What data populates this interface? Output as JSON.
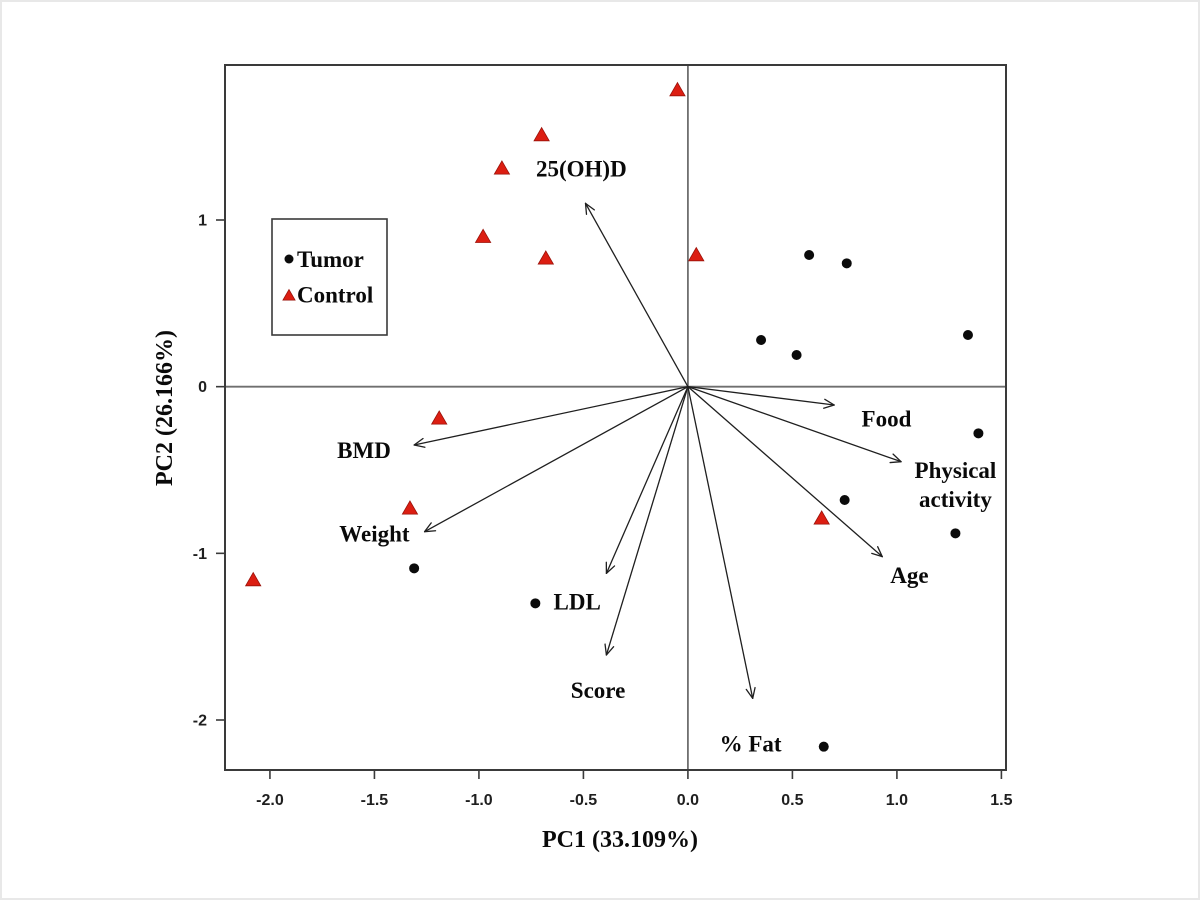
{
  "figure": {
    "background": "#ffffff",
    "frame_color": "#e8e8e8"
  },
  "chart_data": {
    "type": "scatter",
    "subtype": "pca_biplot",
    "title": "",
    "xlabel": "PC1 (33.109%)",
    "ylabel": "PC2 (26.166%)",
    "xlim": [
      -2.215,
      1.522
    ],
    "ylim": [
      -2.3,
      1.93
    ],
    "grid": false,
    "x_ticks": {
      "values": [
        -2.0,
        -1.5,
        -1.0,
        -0.5,
        0.0,
        0.5,
        1.0,
        1.5
      ],
      "labels": [
        "-2.0",
        "-1.5",
        "-1.0",
        "-0.5",
        "0.0",
        "0.5",
        "1.0",
        "1.5"
      ]
    },
    "y_ticks": {
      "values": [
        1,
        0,
        -1,
        -2
      ],
      "labels": [
        "1",
        "0",
        "-1",
        "-2"
      ]
    },
    "legend": {
      "position": "upper-left-inside",
      "items": [
        {
          "label": "Tumor",
          "marker": "dot",
          "color": "#0b0b0b"
        },
        {
          "label": "Control",
          "marker": "triangle",
          "color": "#dc1e12"
        }
      ]
    },
    "series": [
      {
        "name": "Tumor",
        "marker": "dot",
        "color": "#0b0b0b",
        "points": [
          [
            0.58,
            0.79
          ],
          [
            0.76,
            0.74
          ],
          [
            0.35,
            0.28
          ],
          [
            0.52,
            0.19
          ],
          [
            1.34,
            0.31
          ],
          [
            1.39,
            -0.28
          ],
          [
            0.75,
            -0.68
          ],
          [
            1.28,
            -0.88
          ],
          [
            -1.31,
            -1.09
          ],
          [
            -0.73,
            -1.3
          ],
          [
            0.65,
            -2.16
          ]
        ]
      },
      {
        "name": "Control",
        "marker": "triangle",
        "color": "#dc1e12",
        "points": [
          [
            -0.05,
            1.78
          ],
          [
            -0.7,
            1.51
          ],
          [
            -0.89,
            1.31
          ],
          [
            -0.98,
            0.9
          ],
          [
            -0.68,
            0.77
          ],
          [
            0.04,
            0.79
          ],
          [
            -1.19,
            -0.19
          ],
          [
            -1.33,
            -0.73
          ],
          [
            -2.08,
            -1.16
          ],
          [
            0.64,
            -0.79
          ]
        ]
      }
    ],
    "loadings": [
      {
        "name": "25(OH)D",
        "tip": [
          -0.49,
          1.1
        ],
        "label_lines": [
          "25(OH)D"
        ],
        "label_pos": [
          -0.51,
          1.31
        ]
      },
      {
        "name": "BMD",
        "tip": [
          -1.31,
          -0.35
        ],
        "label_lines": [
          "BMD"
        ],
        "label_pos": [
          -1.55,
          -0.38
        ]
      },
      {
        "name": "Weight",
        "tip": [
          -1.26,
          -0.87
        ],
        "label_lines": [
          "Weight"
        ],
        "label_pos": [
          -1.5,
          -0.88
        ]
      },
      {
        "name": "LDL",
        "tip": [
          -0.39,
          -1.12
        ],
        "label_lines": [
          "LDL"
        ],
        "label_pos": [
          -0.53,
          -1.29
        ]
      },
      {
        "name": "Score",
        "tip": [
          -0.39,
          -1.61
        ],
        "label_lines": [
          "Score"
        ],
        "label_pos": [
          -0.43,
          -1.82
        ]
      },
      {
        "name": "% Fat",
        "tip": [
          0.31,
          -1.87
        ],
        "label_lines": [
          "% Fat"
        ],
        "label_pos": [
          0.3,
          -2.14
        ]
      },
      {
        "name": "Food",
        "tip": [
          0.7,
          -0.11
        ],
        "label_lines": [
          "Food"
        ],
        "label_pos": [
          0.95,
          -0.19
        ]
      },
      {
        "name": "Physical activity",
        "tip": [
          1.02,
          -0.45
        ],
        "label_lines": [
          "Physical",
          "activity"
        ],
        "label_pos": [
          1.28,
          -0.5
        ]
      },
      {
        "name": "Age",
        "tip": [
          0.93,
          -1.02
        ],
        "label_lines": [
          "Age"
        ],
        "label_pos": [
          1.06,
          -1.13
        ]
      }
    ],
    "colors": {
      "axis": "#3a3a3a",
      "zero_line": "#6f6f6f",
      "arrow": "#1f1f1f",
      "label_text": "#0a0a0a",
      "tick_text": "#1f1f1f"
    }
  }
}
